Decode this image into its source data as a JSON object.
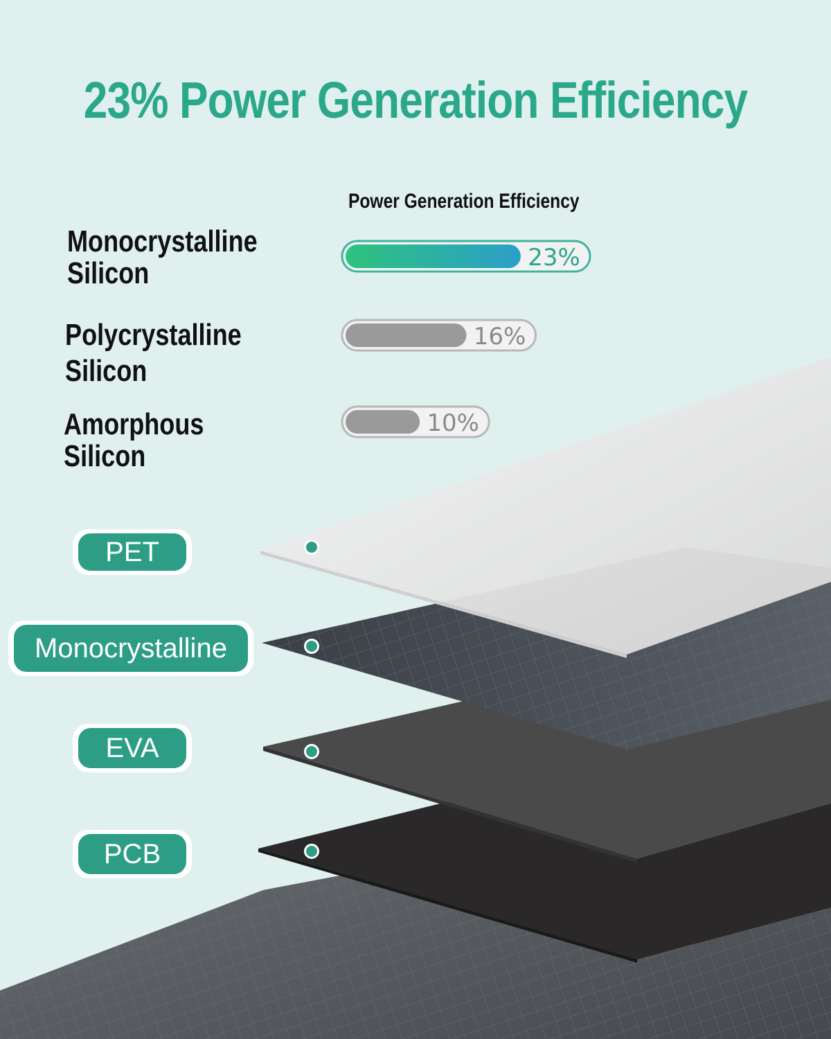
{
  "headline": "23% Power Generation Efficiency",
  "chart_data": {
    "type": "bar",
    "title": "Power Generation Efficiency",
    "categories": [
      "Monocrystalline Silicon",
      "Polycrystalline Silicon",
      "Amorphous Silicon"
    ],
    "category_lines": [
      [
        "Monocrystalline",
        "Silicon"
      ],
      [
        "Polycrystalline",
        "Silicon"
      ],
      [
        "Amorphous",
        "Silicon"
      ]
    ],
    "values": [
      23,
      16,
      10
    ],
    "value_labels": [
      "23%",
      "16%",
      "10%"
    ],
    "unit": "%",
    "colors": {
      "highlight_start": "#2ec27e",
      "highlight_end": "#2b9fc9",
      "highlight_text": "#2aa889",
      "other": "#9a9a9a",
      "other_text": "#8a8a8a"
    }
  },
  "layers": [
    {
      "label": "PET"
    },
    {
      "label": "Monocrystalline"
    },
    {
      "label": "EVA"
    },
    {
      "label": "PCB"
    }
  ],
  "colors": {
    "accent": "#2d9e85",
    "background": "#dff0ee"
  }
}
